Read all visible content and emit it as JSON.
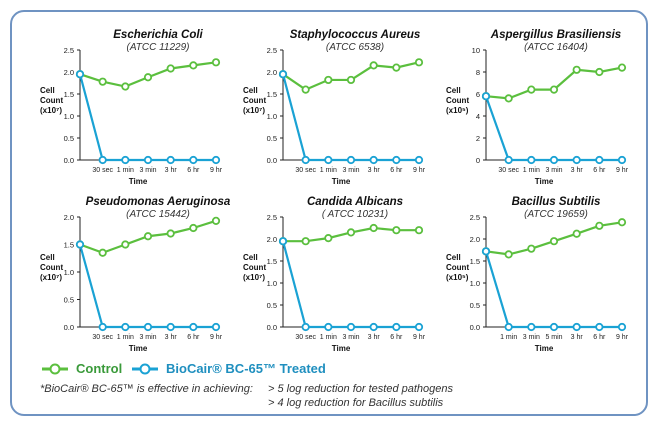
{
  "chart_data": [
    {
      "type": "line",
      "title": "Escherichia Coli",
      "subtitle": "(ATCC 11229)",
      "xlabel": "Time",
      "ylabel": "Cell Count (x10⁷)",
      "ylim": [
        0,
        2.5
      ],
      "yticks": [
        "0.0",
        "0.5",
        "1.0",
        "1.5",
        "2.0",
        "2.5"
      ],
      "categories": [
        "",
        "30 sec",
        "1 min",
        "3 min",
        "3 hr",
        "6 hr",
        "9 hr"
      ],
      "series": [
        {
          "name": "Control",
          "values": [
            1.95,
            1.78,
            1.67,
            1.88,
            2.08,
            2.15,
            2.22
          ]
        },
        {
          "name": "BioCair® BC-65™ Treated",
          "values": [
            1.95,
            0,
            0,
            0,
            0,
            0,
            0
          ]
        }
      ]
    },
    {
      "type": "line",
      "title": "Staphylococcus Aureus",
      "subtitle": "(ATCC 6538)",
      "xlabel": "Time",
      "ylabel": "Cell Count (x10⁷)",
      "ylim": [
        0,
        2.5
      ],
      "yticks": [
        "0.0",
        "0.5",
        "1.0",
        "1.5",
        "2.0",
        "2.5"
      ],
      "categories": [
        "",
        "30 sec",
        "1 min",
        "3 min",
        "3 hr",
        "6 hr",
        "9 hr"
      ],
      "series": [
        {
          "name": "Control",
          "values": [
            1.95,
            1.6,
            1.82,
            1.82,
            2.15,
            2.1,
            2.22
          ]
        },
        {
          "name": "BioCair® BC-65™ Treated",
          "values": [
            1.95,
            0,
            0,
            0,
            0,
            0,
            0
          ]
        }
      ]
    },
    {
      "type": "line",
      "title": "Aspergillus Brasiliensis",
      "subtitle": "(ATCC 16404)",
      "xlabel": "Time",
      "ylabel": "Cell Count (x10⁵)",
      "ylim": [
        0,
        10
      ],
      "yticks": [
        "0",
        "2",
        "4",
        "6",
        "8",
        "10"
      ],
      "categories": [
        "",
        "30 sec",
        "1 min",
        "3 min",
        "3 hr",
        "6 hr",
        "9 hr"
      ],
      "series": [
        {
          "name": "Control",
          "values": [
            5.8,
            5.6,
            6.4,
            6.4,
            8.2,
            8.0,
            8.4
          ]
        },
        {
          "name": "BioCair® BC-65™ Treated",
          "values": [
            5.8,
            0,
            0,
            0,
            0,
            0,
            0
          ]
        }
      ]
    },
    {
      "type": "line",
      "title": "Pseudomonas Aeruginosa",
      "subtitle": "(ATCC 15442)",
      "xlabel": "Time",
      "ylabel": "Cell Count (x10⁷)",
      "ylim": [
        0,
        2.0
      ],
      "yticks": [
        "0.0",
        "0.5",
        "1.0",
        "1.5",
        "2.0"
      ],
      "categories": [
        "",
        "30 sec",
        "1 min",
        "3 min",
        "3 hr",
        "6 hr",
        "9 hr"
      ],
      "series": [
        {
          "name": "Control",
          "values": [
            1.5,
            1.35,
            1.5,
            1.65,
            1.7,
            1.8,
            1.93
          ]
        },
        {
          "name": "BioCair® BC-65™ Treated",
          "values": [
            1.5,
            0,
            0,
            0,
            0,
            0,
            0
          ]
        }
      ]
    },
    {
      "type": "line",
      "title": "Candida Albicans",
      "subtitle": "( ATCC 10231)",
      "xlabel": "Time",
      "ylabel": "Cell Count (x10⁷)",
      "ylim": [
        0,
        2.5
      ],
      "yticks": [
        "0.0",
        "0.5",
        "1.0",
        "1.5",
        "2.0",
        "2.5"
      ],
      "categories": [
        "",
        "30 sec",
        "1 min",
        "3 min",
        "3 hr",
        "6 hr",
        "9 hr"
      ],
      "series": [
        {
          "name": "Control",
          "values": [
            1.95,
            1.95,
            2.02,
            2.15,
            2.25,
            2.2,
            2.2
          ]
        },
        {
          "name": "BioCair® BC-65™ Treated",
          "values": [
            1.95,
            0,
            0,
            0,
            0,
            0,
            0
          ]
        }
      ]
    },
    {
      "type": "line",
      "title": "Bacillus Subtilis",
      "subtitle": "(ATCC 19659)",
      "xlabel": "Time",
      "ylabel": "Cell Count (x10⁵)",
      "ylim": [
        0,
        2.5
      ],
      "yticks": [
        "0.0",
        "0.5",
        "1.0",
        "1.5",
        "2.0",
        "2.5"
      ],
      "categories": [
        "",
        "1 min",
        "3 min",
        "5 min",
        "3 hr",
        "6 hr",
        "9 hr"
      ],
      "series": [
        {
          "name": "Control",
          "values": [
            1.72,
            1.65,
            1.78,
            1.95,
            2.12,
            2.3,
            2.38
          ]
        },
        {
          "name": "BioCair® BC-65™ Treated",
          "values": [
            1.72,
            0,
            0,
            0,
            0,
            0,
            0
          ]
        }
      ]
    }
  ],
  "colors": {
    "control": "#5bbf3e",
    "treated": "#1aa2d4",
    "frame": "#6f93c2"
  },
  "legend": {
    "control": "Control",
    "treated": "BioCair® BC-65™ Treated"
  },
  "footnote": {
    "left": "*BioCair® BC-65™ is effective in achieving:",
    "line1": "> 5 log reduction for tested pathogens",
    "line2": "> 4 log reduction for Bacillus subtilis"
  }
}
